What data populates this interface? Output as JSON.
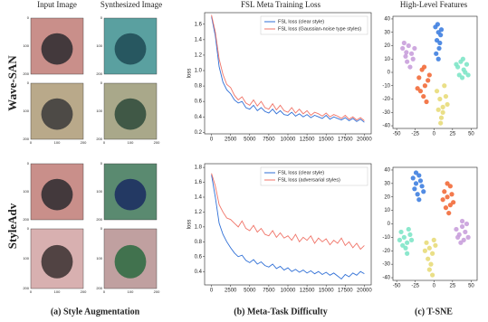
{
  "figure": {
    "column_titles": [
      "Input Image",
      "Synthesized Image",
      "FSL Meta Training Loss",
      "High-Level Features"
    ],
    "row_labels": [
      "Wave-SAN",
      "StyleAdv"
    ],
    "captions": [
      "(a) Style Augmentation",
      "(b) Meta-Task Difficulty",
      "(c) T-SNE"
    ],
    "image_axis_ticks": [
      0,
      100,
      200
    ]
  },
  "chart_data": [
    {
      "type": "line",
      "ylabel": "loss",
      "x": [
        0,
        500,
        1000,
        1500,
        2000,
        2500,
        3000,
        3500,
        4000,
        4500,
        5000,
        5500,
        6000,
        6500,
        7000,
        7500,
        8000,
        8500,
        9000,
        9500,
        10000,
        10500,
        11000,
        11500,
        12000,
        12500,
        13000,
        13500,
        14000,
        14500,
        15000,
        15500,
        16000,
        16500,
        17000,
        17500,
        18000,
        18500,
        19000,
        19500,
        20000
      ],
      "series": [
        {
          "name": "FSL loss (clear style)",
          "color": "#2f6fd6",
          "values": [
            1.7,
            1.45,
            1.05,
            0.85,
            0.75,
            0.7,
            0.62,
            0.58,
            0.6,
            0.52,
            0.5,
            0.55,
            0.48,
            0.52,
            0.47,
            0.45,
            0.5,
            0.44,
            0.48,
            0.43,
            0.42,
            0.46,
            0.41,
            0.44,
            0.4,
            0.43,
            0.39,
            0.42,
            0.4,
            0.38,
            0.42,
            0.37,
            0.4,
            0.38,
            0.36,
            0.39,
            0.35,
            0.38,
            0.34,
            0.37,
            0.33
          ]
        },
        {
          "name": "FSL loss (Gaussian-noise type styles)",
          "color": "#f07468",
          "values": [
            1.72,
            1.5,
            1.15,
            0.95,
            0.82,
            0.78,
            0.68,
            0.62,
            0.66,
            0.58,
            0.55,
            0.62,
            0.54,
            0.6,
            0.52,
            0.5,
            0.57,
            0.49,
            0.55,
            0.48,
            0.46,
            0.52,
            0.45,
            0.5,
            0.44,
            0.48,
            0.42,
            0.46,
            0.44,
            0.41,
            0.45,
            0.4,
            0.43,
            0.41,
            0.38,
            0.42,
            0.37,
            0.4,
            0.36,
            0.39,
            0.35
          ]
        }
      ],
      "xlim": [
        -900,
        20900
      ],
      "xticks": [
        0,
        2500,
        5000,
        7500,
        10000,
        12500,
        15000,
        17500,
        20000
      ],
      "ylim": [
        0.18,
        1.75
      ],
      "yticks": [
        0.2,
        0.4,
        0.6,
        0.8,
        {
          "value": 1,
          "label": "1.0"
        },
        1.2,
        1.4,
        1.6
      ],
      "legend": "upper right"
    },
    {
      "type": "scatter",
      "series": [
        {
          "color": "#c9a0dc",
          "x": [
            -42,
            -38,
            -34,
            -30,
            -36,
            -28,
            -40,
            -32,
            -26,
            -37
          ],
          "y": [
            18,
            12,
            20,
            14,
            8,
            10,
            22,
            4,
            18,
            15
          ]
        },
        {
          "color": "#3f7fe0",
          "x": [
            2,
            6,
            4,
            9,
            7,
            3,
            10,
            5,
            8,
            6
          ],
          "y": [
            34,
            30,
            24,
            28,
            18,
            14,
            32,
            36,
            22,
            10
          ]
        },
        {
          "color": "#7fe6c8",
          "x": [
            32,
            36,
            40,
            44,
            38,
            34,
            42,
            30,
            46,
            39
          ],
          "y": [
            4,
            8,
            2,
            6,
            -4,
            -2,
            0,
            6,
            -2,
            10
          ]
        },
        {
          "color": "#f26b3a",
          "x": [
            -20,
            -16,
            -12,
            -8,
            -14,
            -18,
            -10,
            -6,
            -22,
            -13
          ],
          "y": [
            -4,
            2,
            -10,
            -6,
            -18,
            -14,
            -22,
            -2,
            -12,
            4
          ]
        },
        {
          "color": "#e8dc7a",
          "x": [
            4,
            8,
            12,
            16,
            10,
            6,
            14,
            18,
            9,
            12
          ],
          "y": [
            -14,
            -20,
            -26,
            -18,
            -34,
            -28,
            -10,
            -24,
            -38,
            -30
          ]
        }
      ],
      "xlim": [
        -55,
        58
      ],
      "xticks": [
        -50,
        -25,
        0,
        25,
        50
      ],
      "ylim": [
        -42,
        42
      ],
      "yticks": [
        -40,
        -30,
        -20,
        -10,
        0,
        10,
        20,
        30,
        40
      ]
    },
    {
      "type": "line",
      "ylabel": "loss",
      "x": [
        0,
        500,
        1000,
        1500,
        2000,
        2500,
        3000,
        3500,
        4000,
        4500,
        5000,
        5500,
        6000,
        6500,
        7000,
        7500,
        8000,
        8500,
        9000,
        9500,
        10000,
        10500,
        11000,
        11500,
        12000,
        12500,
        13000,
        13500,
        14000,
        14500,
        15000,
        15500,
        16000,
        16500,
        17000,
        17500,
        18000,
        18500,
        19000,
        19500,
        20000
      ],
      "series": [
        {
          "name": "FSL loss (clear style)",
          "color": "#2f6fd6",
          "values": [
            1.7,
            1.4,
            1.05,
            0.9,
            0.8,
            0.72,
            0.65,
            0.6,
            0.62,
            0.55,
            0.52,
            0.56,
            0.5,
            0.53,
            0.48,
            0.46,
            0.5,
            0.44,
            0.47,
            0.42,
            0.45,
            0.4,
            0.43,
            0.39,
            0.42,
            0.38,
            0.41,
            0.37,
            0.4,
            0.36,
            0.39,
            0.35,
            0.38,
            0.34,
            0.3,
            0.36,
            0.33,
            0.38,
            0.35,
            0.4,
            0.37
          ]
        },
        {
          "name": "FSL loss (adversarial styles)",
          "color": "#f07468",
          "values": [
            1.72,
            1.55,
            1.3,
            1.2,
            1.12,
            1.1,
            1.05,
            1.0,
            1.08,
            0.98,
            0.95,
            1.02,
            0.93,
            0.98,
            0.9,
            0.88,
            0.95,
            0.86,
            0.92,
            0.85,
            0.88,
            0.82,
            0.9,
            0.8,
            0.86,
            0.82,
            0.88,
            0.78,
            0.85,
            0.8,
            0.84,
            0.76,
            0.82,
            0.78,
            0.85,
            0.75,
            0.8,
            0.72,
            0.78,
            0.7,
            0.75
          ]
        }
      ],
      "xlim": [
        -900,
        20900
      ],
      "xticks": [
        0,
        2500,
        5000,
        7500,
        10000,
        12500,
        15000,
        17500,
        20000
      ],
      "ylim": [
        0.22,
        1.85
      ],
      "yticks": [
        0.4,
        0.6,
        0.8,
        {
          "value": 1,
          "label": "1.0"
        },
        1.2,
        1.4,
        1.6,
        1.8
      ],
      "legend": "upper right"
    },
    {
      "type": "scatter",
      "series": [
        {
          "color": "#3f7fe0",
          "x": [
            -28,
            -24,
            -20,
            -16,
            -22,
            -18,
            -26,
            -14,
            -20,
            -24
          ],
          "y": [
            34,
            30,
            36,
            28,
            22,
            32,
            26,
            24,
            18,
            38
          ]
        },
        {
          "color": "#f26b3a",
          "x": [
            14,
            18,
            22,
            26,
            16,
            20,
            24,
            12,
            18,
            22
          ],
          "y": [
            24,
            20,
            28,
            16,
            12,
            8,
            22,
            18,
            30,
            14
          ]
        },
        {
          "color": "#7fe6c8",
          "x": [
            -44,
            -40,
            -36,
            -32,
            -38,
            -42,
            -34,
            -30,
            -46,
            -36
          ],
          "y": [
            -6,
            -10,
            -14,
            -8,
            -18,
            -16,
            -4,
            -12,
            -12,
            -22
          ]
        },
        {
          "color": "#e8dc7a",
          "x": [
            -10,
            -6,
            -2,
            2,
            -8,
            -4,
            0,
            -6,
            -12,
            -2
          ],
          "y": [
            -14,
            -18,
            -22,
            -16,
            -26,
            -30,
            -12,
            -34,
            -20,
            -38
          ]
        },
        {
          "color": "#c9a0dc",
          "x": [
            30,
            34,
            38,
            42,
            46,
            36,
            40,
            44,
            32,
            38
          ],
          "y": [
            -4,
            -8,
            -2,
            -6,
            -10,
            -14,
            -12,
            0,
            -10,
            2
          ]
        }
      ],
      "xlim": [
        -55,
        58
      ],
      "xticks": [
        -50,
        -25,
        0,
        25,
        50
      ],
      "ylim": [
        -42,
        42
      ],
      "yticks": [
        -40,
        -30,
        -20,
        -10,
        0,
        10,
        20,
        30,
        40
      ]
    }
  ]
}
